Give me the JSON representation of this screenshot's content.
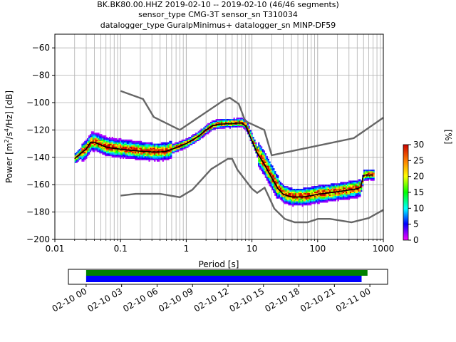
{
  "chart_data": {
    "type": "heatmap",
    "title_lines": [
      "BK.BK80.00.HHZ   2019-02-10 -- 2019-02-10  (46/46 segments)",
      "sensor_type CMG-3T sensor_sn T310034",
      "datalogger_type GuralpMinimus+ datalogger_sn MINP-DF59"
    ],
    "xlabel": "Period [s]",
    "ylabel_main": "Power [m",
    "ylabel_sup1": "2",
    "ylabel_mid": "/s",
    "ylabel_sup2": "4",
    "ylabel_end": "/Hz] [dB]",
    "x_scale": "log",
    "xlim": [
      0.01,
      1000
    ],
    "ylim": [
      -200,
      -50
    ],
    "x_ticks": [
      {
        "value": 0.01,
        "label": "0.01"
      },
      {
        "value": 0.1,
        "label": "0.1"
      },
      {
        "value": 1,
        "label": "1"
      },
      {
        "value": 10,
        "label": "10"
      },
      {
        "value": 100,
        "label": "100"
      },
      {
        "value": 1000,
        "label": "1000"
      }
    ],
    "y_ticks": [
      {
        "value": -60,
        "label": "−60"
      },
      {
        "value": -80,
        "label": "−80"
      },
      {
        "value": -100,
        "label": "−100"
      },
      {
        "value": -120,
        "label": "−120"
      },
      {
        "value": -140,
        "label": "−140"
      },
      {
        "value": -160,
        "label": "−160"
      },
      {
        "value": -180,
        "label": "−180"
      },
      {
        "value": -200,
        "label": "−200"
      }
    ],
    "grid": true,
    "colorbar": {
      "label": "[%]",
      "min": 0,
      "max": 30,
      "ticks": [
        {
          "value": 0,
          "label": "0"
        },
        {
          "value": 5,
          "label": "5"
        },
        {
          "value": 10,
          "label": "10"
        },
        {
          "value": 15,
          "label": "15"
        },
        {
          "value": 20,
          "label": "20"
        },
        {
          "value": 25,
          "label": "25"
        },
        {
          "value": 30,
          "label": "30"
        }
      ],
      "colormap": [
        "#ff00ff",
        "#0000ff",
        "#00ffff",
        "#00ff00",
        "#ffff00",
        "#ff7f00",
        "#cc0000"
      ]
    },
    "nlnm": [
      [
        0.1,
        -168
      ],
      [
        0.17,
        -166.7
      ],
      [
        0.4,
        -166.7
      ],
      [
        0.8,
        -169.2
      ],
      [
        1.24,
        -163.7
      ],
      [
        2.4,
        -148.6
      ],
      [
        4.3,
        -141.1
      ],
      [
        5.0,
        -141.1
      ],
      [
        6.0,
        -149.0
      ],
      [
        10.0,
        -163.0
      ],
      [
        12.0,
        -166.0
      ],
      [
        15.6,
        -162.2
      ],
      [
        21.9,
        -177.5
      ],
      [
        31.6,
        -185.0
      ],
      [
        45.0,
        -187.5
      ],
      [
        70.0,
        -187.5
      ],
      [
        101.0,
        -185.0
      ],
      [
        154.0,
        -185.0
      ],
      [
        328.0,
        -187.5
      ],
      [
        600.0,
        -184.4
      ],
      [
        1000.0,
        -178.4
      ]
    ],
    "nhnm": [
      [
        0.1,
        -91.5
      ],
      [
        0.22,
        -97.4
      ],
      [
        0.32,
        -110.5
      ],
      [
        0.8,
        -120.0
      ],
      [
        3.8,
        -98.0
      ],
      [
        4.6,
        -96.5
      ],
      [
        6.3,
        -101.0
      ],
      [
        7.9,
        -113.5
      ],
      [
        15.4,
        -120.0
      ],
      [
        20.0,
        -138.5
      ],
      [
        354.8,
        -126.0
      ],
      [
        1000.0,
        -111.0
      ]
    ],
    "mode_curve": [
      [
        0.02,
        -141
      ],
      [
        0.025,
        -137
      ],
      [
        0.03,
        -134
      ],
      [
        0.035,
        -129
      ],
      [
        0.04,
        -129
      ],
      [
        0.05,
        -131
      ],
      [
        0.06,
        -132.5
      ],
      [
        0.08,
        -133.5
      ],
      [
        0.1,
        -134
      ],
      [
        0.15,
        -135
      ],
      [
        0.2,
        -135.5
      ],
      [
        0.3,
        -136
      ],
      [
        0.4,
        -136
      ],
      [
        0.5,
        -135.5
      ],
      [
        0.7,
        -133
      ],
      [
        1.0,
        -130
      ],
      [
        1.5,
        -125
      ],
      [
        2.0,
        -120
      ],
      [
        2.5,
        -117
      ],
      [
        3.0,
        -116
      ],
      [
        4.0,
        -115.5
      ],
      [
        5.0,
        -115.5
      ],
      [
        6.0,
        -115
      ],
      [
        7.0,
        -115
      ],
      [
        8.0,
        -117
      ],
      [
        10.0,
        -128
      ],
      [
        12.0,
        -137
      ],
      [
        15.0,
        -144
      ],
      [
        20.0,
        -155
      ],
      [
        25.0,
        -163
      ],
      [
        30.0,
        -167
      ],
      [
        40.0,
        -169
      ],
      [
        60.0,
        -169
      ],
      [
        80.0,
        -168
      ],
      [
        100.0,
        -167
      ],
      [
        150.0,
        -166
      ],
      [
        250.0,
        -164.5
      ],
      [
        400.0,
        -163
      ],
      [
        450.0,
        -162
      ],
      [
        500.0,
        -153
      ],
      [
        700.0,
        -153
      ]
    ],
    "timeline": {
      "tick_labels": [
        "02-10 00",
        "02-10 03",
        "02-10 06",
        "02-10 09",
        "02-10 12",
        "02-10 15",
        "02-10 18",
        "02-10 21",
        "02-11 00"
      ],
      "range_hours": [
        -1.5,
        25.5
      ],
      "data_span_hours": [
        0,
        23.8
      ],
      "segments_span_hours": [
        0,
        23.3
      ],
      "data_color": "#008000",
      "segments_color": "#0000ff"
    }
  }
}
